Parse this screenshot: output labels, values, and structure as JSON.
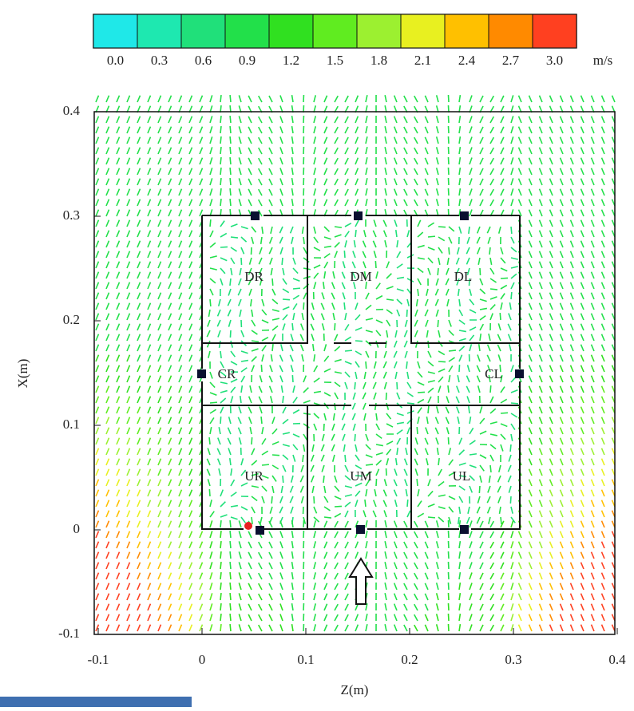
{
  "chart_data": {
    "type": "vector",
    "colorbar": {
      "colors": [
        "#1fe8e8",
        "#1ee8b0",
        "#20e07a",
        "#22e04a",
        "#30e020",
        "#60ec20",
        "#9cf030",
        "#e8f020",
        "#ffc000",
        "#ff8a00",
        "#ff4020"
      ],
      "ticks": [
        {
          "value": 0,
          "label": "0.0"
        },
        0.3,
        0.6,
        0.9,
        1.2,
        1.5,
        1.8,
        2.1,
        2.4,
        2.7,
        {
          "value": 3,
          "label": "3.0"
        }
      ],
      "unit": "m/s"
    },
    "xlabel": "Z(m)",
    "ylabel": "X(m)",
    "xlim": [
      -0.1,
      0.4
    ],
    "ylim": [
      -0.1,
      0.4
    ],
    "xticks": [
      -0.1,
      0,
      0.1,
      0.2,
      0.3,
      0.4
    ],
    "yticks": [
      -0.1,
      0,
      0.1,
      0.2,
      0.3,
      0.4
    ],
    "room_labels": [
      "DR",
      "DM",
      "DL",
      "CR",
      "CL",
      "UR",
      "UM",
      "UL"
    ]
  }
}
